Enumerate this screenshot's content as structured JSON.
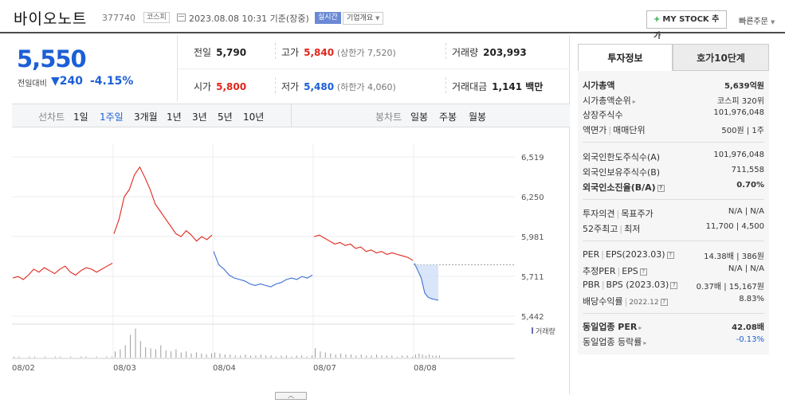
{
  "header": {
    "name": "바이오노트",
    "code": "377740",
    "market": "코스피",
    "datetime": "2023.08.08 10:31 기준(장중)",
    "realtime": "실시간",
    "company_btn": "기업개요",
    "mystock_btn": "MY STOCK 추가",
    "quick_order": "빠른주문"
  },
  "price": {
    "current": "5,550",
    "change_label": "전일대비",
    "change": "240",
    "change_pct": "-4.15%"
  },
  "summary": {
    "prev_label": "전일",
    "prev": "5,790",
    "high_label": "고가",
    "high": "5,840",
    "upper_limit": "(상한가 7,520)",
    "volume_label": "거래량",
    "volume": "203,993",
    "open_label": "시가",
    "open": "5,800",
    "low_label": "저가",
    "low": "5,480",
    "lower_limit": "(하한가 4,060)",
    "value_label": "거래대금",
    "value": "1,141 백만"
  },
  "period_bar": {
    "line_label": "선차트",
    "periods": [
      "1일",
      "1주일",
      "3개월",
      "1년",
      "3년",
      "5년",
      "10년"
    ],
    "selected": "1주일",
    "candle_label": "봉차트",
    "candles": [
      "일봉",
      "주봉",
      "월봉"
    ]
  },
  "chart_data": {
    "type": "line",
    "x_labels": [
      "08/02",
      "08/03",
      "08/04",
      "08/07",
      "08/08"
    ],
    "y_ticks": [
      6519,
      6250,
      5981,
      5711,
      5442
    ],
    "ylim": [
      5442,
      6519
    ],
    "volume_label": "거래량",
    "reference_price": 5790,
    "series": [
      {
        "day": "08/02",
        "values": [
          5700,
          5710,
          5690,
          5720,
          5760,
          5740,
          5770,
          5750,
          5730,
          5760,
          5780,
          5740,
          5720,
          5750,
          5770,
          5760,
          5740,
          5760,
          5780,
          5800
        ]
      },
      {
        "day": "08/03",
        "values": [
          6000,
          6100,
          6250,
          6300,
          6400,
          6450,
          6380,
          6300,
          6200,
          6150,
          6100,
          6050,
          6000,
          5980,
          6020,
          5990,
          5950,
          5980,
          5960,
          5990
        ]
      },
      {
        "day": "08/04",
        "values": [
          5880,
          5790,
          5760,
          5720,
          5700,
          5690,
          5680,
          5660,
          5650,
          5660,
          5650,
          5640,
          5660,
          5670,
          5690,
          5700,
          5690,
          5710,
          5700,
          5720
        ]
      },
      {
        "day": "08/07",
        "values": [
          5980,
          5990,
          5970,
          5950,
          5930,
          5940,
          5920,
          5930,
          5900,
          5910,
          5880,
          5890,
          5870,
          5880,
          5860,
          5870,
          5860,
          5850,
          5840,
          5820
        ]
      },
      {
        "day": "08/08",
        "values": [
          5800,
          5750,
          5700,
          5600,
          5570,
          5560,
          5555,
          5550
        ]
      }
    ]
  },
  "side": {
    "tab_invest": "투자정보",
    "tab_orderbook": "호가10단계",
    "market_cap_label": "시가총액",
    "market_cap": "5,639억원",
    "cap_rank_label": "시가총액순위",
    "cap_rank": "코스피 320위",
    "shares_label": "상장주식수",
    "shares": "101,976,048",
    "face_label": "액면가",
    "unit_label": "매매단위",
    "face_unit": "500원 | 1주",
    "foreign_limit_label": "외국인한도주식수(A)",
    "foreign_limit": "101,976,048",
    "foreign_hold_label": "외국인보유주식수(B)",
    "foreign_hold": "711,558",
    "foreign_rate_label": "외국인소진율(B/A)",
    "foreign_rate": "0.70%",
    "opinion_label": "투자의견",
    "target_label": "목표주가",
    "opinion_target": "N/A | N/A",
    "w52_label": "52주최고",
    "w52_low_label": "최저",
    "w52": "11,700 | 4,500",
    "per_label": "PER",
    "eps_label": "EPS(2023.03)",
    "per_eps": "14.38배 | 386원",
    "est_per_label": "추정PER",
    "est_eps_label": "EPS",
    "est_per_eps": "N/A | N/A",
    "pbr_label": "PBR",
    "bps_label": "BPS (2023.03)",
    "pbr_bps": "0.37배 | 15,167원",
    "div_label": "배당수익률",
    "div_date": "2022.12",
    "div": "8.83%",
    "sector_per_label": "동일업종 PER",
    "sector_per": "42.08배",
    "sector_rate_label": "동일업종 등락률",
    "sector_rate": "-0.13%"
  }
}
